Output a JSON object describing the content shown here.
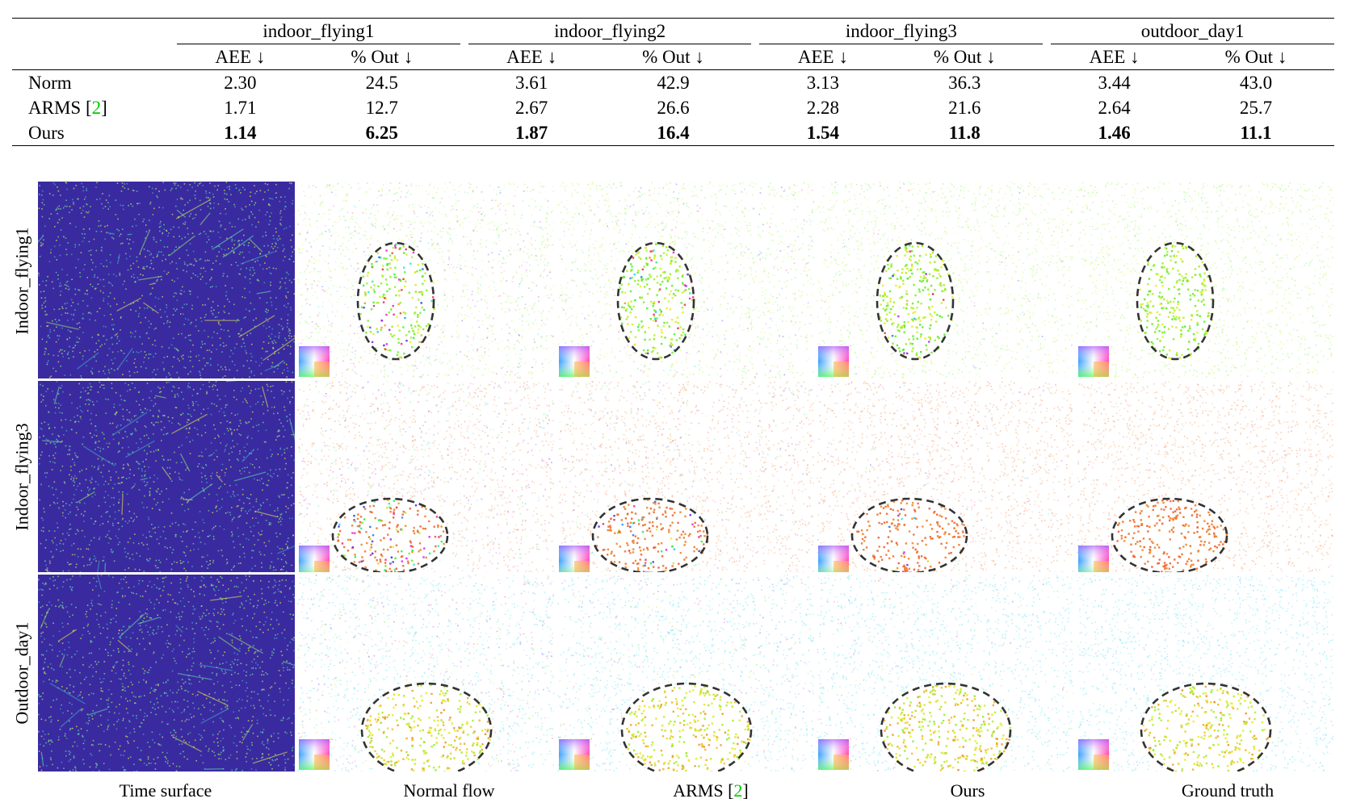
{
  "table": {
    "groups": [
      "indoor_flying1",
      "indoor_flying2",
      "indoor_flying3",
      "outdoor_day1"
    ],
    "metric_headers": [
      "AEE ↓",
      "% Out ↓"
    ],
    "rows": [
      {
        "method": "Norm",
        "cite": "",
        "values": [
          "2.30",
          "24.5",
          "3.61",
          "42.9",
          "3.13",
          "36.3",
          "3.44",
          "43.0"
        ],
        "best": false
      },
      {
        "method": "ARMS [",
        "cite": "2",
        "method_end": "]",
        "values": [
          "1.71",
          "12.7",
          "2.67",
          "26.6",
          "2.28",
          "21.6",
          "2.64",
          "25.7"
        ],
        "best": false
      },
      {
        "method": "Ours",
        "cite": "",
        "values": [
          "1.14",
          "6.25",
          "1.87",
          "16.4",
          "1.54",
          "11.8",
          "1.46",
          "11.1"
        ],
        "best": true
      }
    ]
  },
  "figure": {
    "row_labels": [
      "Indoor_flying1",
      "Indoor_flying3",
      "Outdoor_day1"
    ],
    "column_captions": {
      "time_surface": "Time surface",
      "normal_flow": "Normal flow",
      "arms_prefix": "ARMS [",
      "arms_cite": "2",
      "arms_suffix": "]",
      "ours": "Ours",
      "ground_truth": "Ground truth"
    },
    "colors": {
      "time_surface_bg": "#3a2aa0",
      "citation": "#00cc00",
      "ellipse": "#333333"
    }
  }
}
